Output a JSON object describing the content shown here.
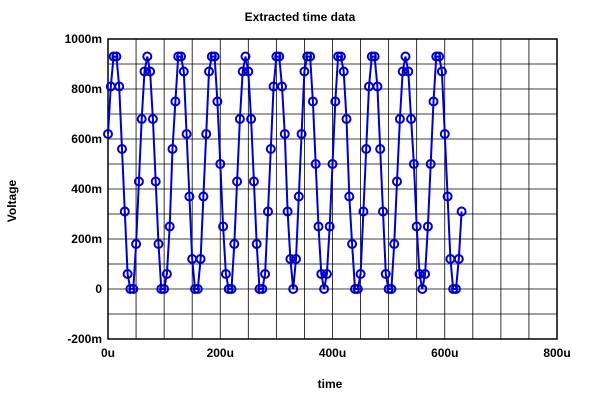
{
  "chart_data": {
    "type": "line",
    "title": "Extracted time data",
    "xlabel": "time",
    "ylabel": "Voltage",
    "xlim": [
      0,
      0.0008
    ],
    "ylim": [
      -0.2,
      1.0
    ],
    "x_tick_labels": [
      "0u",
      "200u",
      "400u",
      "600u",
      "800u"
    ],
    "x_tick_values": [
      0,
      0.0002,
      0.0004,
      0.0006,
      0.0008
    ],
    "y_tick_labels": [
      "-200m",
      "0",
      "200m",
      "400m",
      "600m",
      "800m",
      "1000m"
    ],
    "y_tick_values": [
      -0.2,
      0,
      0.2,
      0.4,
      0.6,
      0.8,
      1.0
    ],
    "grid": true,
    "series_color": "#0000cc",
    "marker": "circle",
    "x_start": 0,
    "x_step": 5e-06,
    "values": [
      0.62,
      0.81,
      0.93,
      0.93,
      0.81,
      0.56,
      0.31,
      0.06,
      0,
      0,
      0.18,
      0.43,
      0.68,
      0.87,
      0.93,
      0.87,
      0.68,
      0.43,
      0.18,
      0,
      0,
      0.06,
      0.25,
      0.56,
      0.75,
      0.93,
      0.93,
      0.87,
      0.62,
      0.37,
      0.12,
      0,
      0,
      0.12,
      0.37,
      0.62,
      0.87,
      0.93,
      0.93,
      0.75,
      0.5,
      0.25,
      0.06,
      0,
      0,
      0.18,
      0.43,
      0.68,
      0.87,
      0.93,
      0.87,
      0.68,
      0.43,
      0.18,
      0,
      0,
      0.06,
      0.31,
      0.56,
      0.81,
      0.93,
      0.93,
      0.81,
      0.62,
      0.31,
      0.12,
      0,
      0.12,
      0.37,
      0.62,
      0.87,
      0.93,
      0.93,
      0.75,
      0.5,
      0.25,
      0.06,
      0,
      0.06,
      0.25,
      0.5,
      0.75,
      0.93,
      0.93,
      0.87,
      0.68,
      0.37,
      0.18,
      0,
      0,
      0.06,
      0.31,
      0.56,
      0.81,
      0.93,
      0.93,
      0.81,
      0.56,
      0.31,
      0.06,
      0,
      0,
      0.18,
      0.43,
      0.68,
      0.87,
      0.93,
      0.87,
      0.68,
      0.5,
      0.25,
      0.06,
      0,
      0.06,
      0.25,
      0.5,
      0.75,
      0.93,
      0.93,
      0.87,
      0.62,
      0.37,
      0.12,
      0,
      0,
      0.12,
      0.31
    ]
  }
}
